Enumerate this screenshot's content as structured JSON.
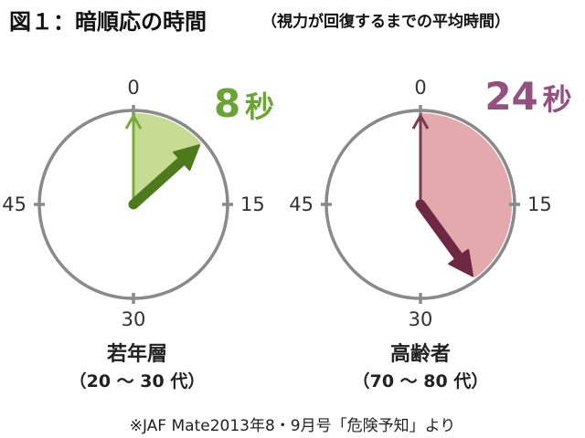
{
  "title": "図１：暗順応の時間",
  "subtitle": "（視力が回復するまでの平均時間）",
  "footnote": "※JAF Mate2013年8・9月号「危険予知」より",
  "chart_data": [
    {
      "type": "pie",
      "group": "若年層",
      "group_range": "（20 ～ 30 代）",
      "seconds": 8,
      "value_number": "8",
      "value_unit": "秒",
      "dial_max": 60,
      "ticks": [
        "0",
        "15",
        "30",
        "45"
      ],
      "fill_color": "#c5dc92",
      "fill_edge_color": "#7aaa3a",
      "hand_color": "#4e7a1e",
      "label_color": "#6aa434"
    },
    {
      "type": "pie",
      "group": "高齢者",
      "group_range": "（70 ～ 80 代）",
      "seconds": 24,
      "value_number": "24",
      "value_unit": "秒",
      "dial_max": 60,
      "ticks": [
        "0",
        "15",
        "30",
        "45"
      ],
      "fill_color": "#e4a9ac",
      "fill_edge_color": "#7a3a50",
      "hand_color": "#6e2942",
      "label_color": "#94507e"
    }
  ]
}
